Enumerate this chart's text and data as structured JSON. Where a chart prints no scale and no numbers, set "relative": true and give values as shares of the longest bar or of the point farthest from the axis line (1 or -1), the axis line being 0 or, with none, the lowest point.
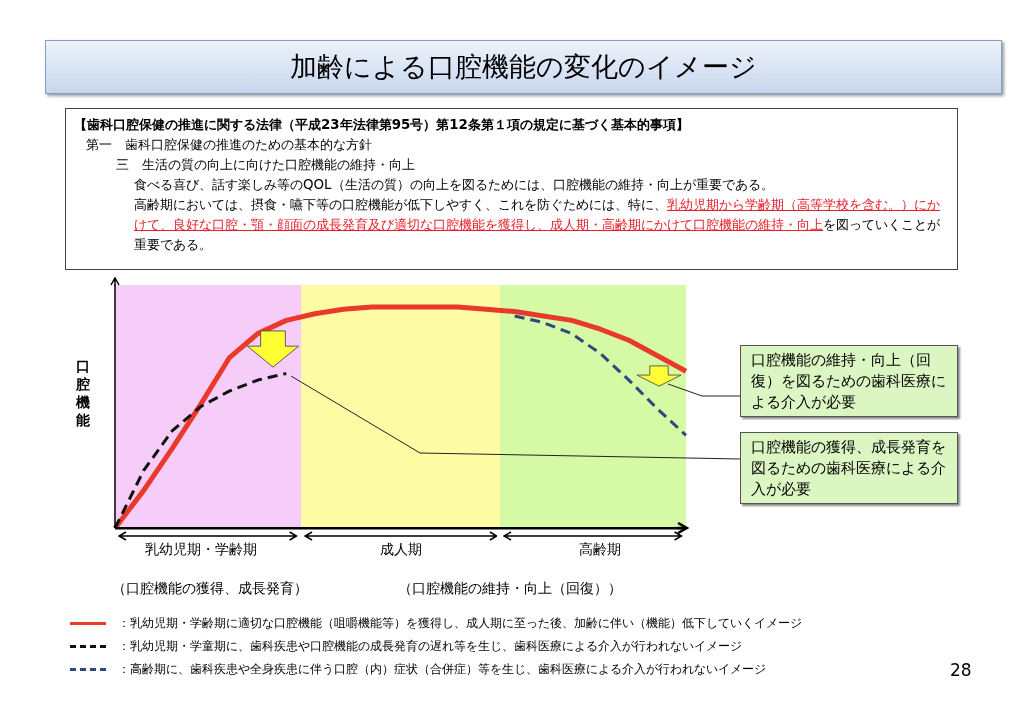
{
  "chart_data": {
    "type": "line",
    "title": "加齢による口腔機能の変化のイメージ",
    "ylabel": "口腔機能",
    "relative": true,
    "tick_labels": "x",
    "grid": false,
    "legend": "bottom",
    "categories": [
      null,
      null,
      null,
      "乳幼児期・学齢期",
      null,
      null,
      null,
      null,
      null,
      null,
      "成人期",
      null,
      null,
      null,
      null,
      null,
      null,
      "高齢期",
      null,
      null,
      null
    ],
    "series": [
      {
        "name": "：乳幼児期・学齢期に適切な口腔機能（咀嚼機能等）を獲得し、成人期に至った後、加齢に伴い（機能）低下していくイメージ",
        "color": "#e8392b",
        "line_style": "solid",
        "values": [
          0,
          0.17,
          0.36,
          0.56,
          0.77,
          0.88,
          0.94,
          0.97,
          0.99,
          1,
          1,
          1,
          1,
          0.99,
          0.98,
          0.96,
          0.94,
          0.9,
          0.85,
          0.78,
          0.71
        ]
      },
      {
        "name": "：乳幼児期・学童期に、歯科疾患や口腔機能の成長発育の遅れ等を生じ、歯科医療による介入が行われないイメージ",
        "color": "#111111",
        "line_style": "dashed",
        "values": [
          0,
          0.26,
          0.44,
          0.55,
          0.62,
          0.67,
          0.7,
          null,
          null,
          null,
          null,
          null,
          null,
          null,
          null,
          null,
          null,
          null,
          null,
          null,
          null
        ]
      },
      {
        "name": "：高齢期に、歯科疾患や全身疾患に伴う口腔（内）症状（合併症）等を生じ、歯科医療による介入が行われないイメージ",
        "color": "#2c4a7c",
        "line_style": "dashed",
        "values": [
          null,
          null,
          null,
          null,
          null,
          null,
          null,
          null,
          null,
          null,
          null,
          null,
          null,
          null,
          0.96,
          0.93,
          0.88,
          0.79,
          0.67,
          0.54,
          0.42
        ]
      }
    ],
    "annotations": [
      "【歯科口腔保健の推進に関する法律（平成23年法律第95号）第12条第１項の規定に基づく基本的事項】",
      "第一　歯科口腔保健の推進のための基本的な方針",
      "三　生活の質の向上に向けた口腔機能の維持・向上",
      "食べる喜び、話す楽しみ等のQOL（生活の質）の向上を図るためには、口腔機能の維持・向上が重要である。",
      "高齢期においては、摂食・嚥下等の口腔機能が低下しやすく、これを防ぐためには、特に、",
      "乳幼児期から学齢期（高等学校を含む。）にかけて、良好な口腔・顎・顔面の成長発育及び適切な口腔機能を獲得し、成人期・高齢期にかけて口腔機能の維持・向上",
      "を図っていくことが重要である。",
      "口腔機能の維持・向上（回復）を図るための歯科医療による介入が必要",
      "口腔機能の獲得、成長発育を図るための歯科医療による介入が必要",
      "（口腔機能の獲得、成長発育）",
      "（口腔機能の維持・向上（回復））",
      "28"
    ]
  }
}
